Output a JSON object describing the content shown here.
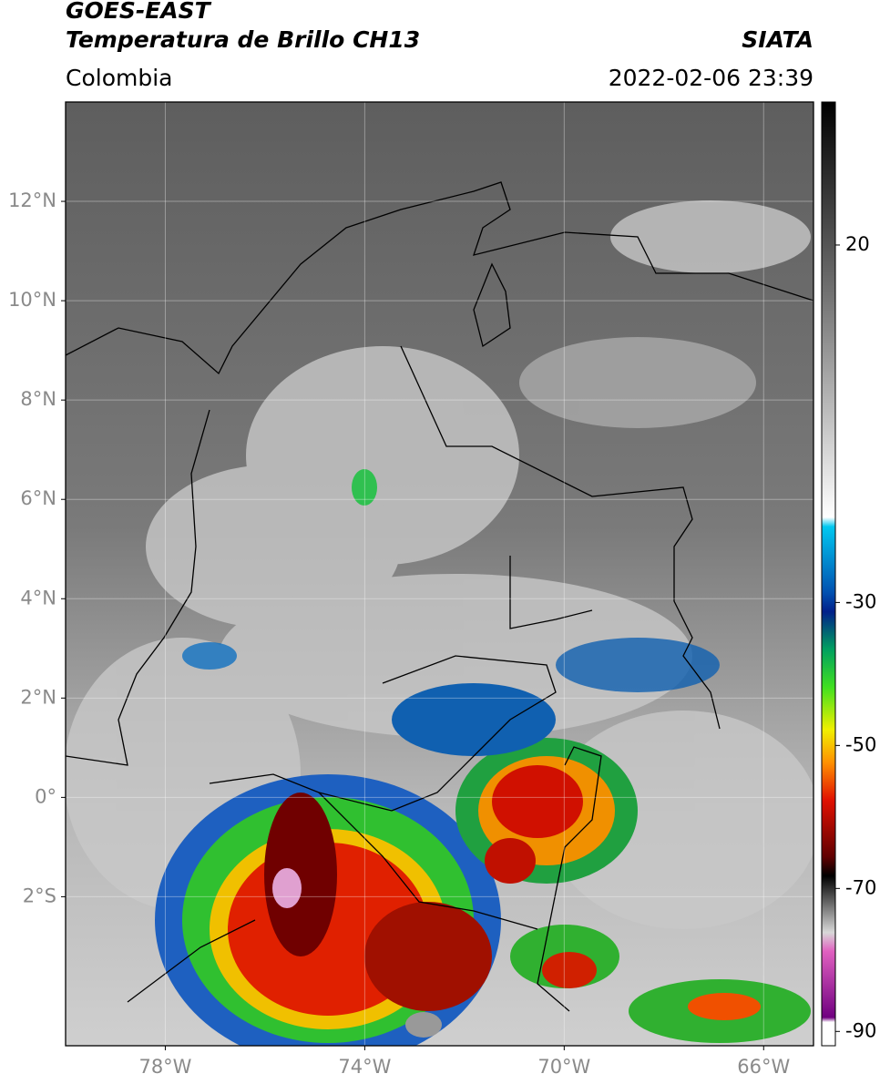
{
  "header": {
    "title": "GOES-EAST",
    "subtitle": "Temperatura de Brillo CH13",
    "source": "SIATA",
    "region": "Colombia",
    "datetime": "2022-02-06 23:39"
  },
  "map": {
    "xlim": [
      -80,
      -65
    ],
    "ylim": [
      -5,
      14
    ],
    "xticks": [
      {
        "value": -78,
        "label": "78°W"
      },
      {
        "value": -74,
        "label": "74°W"
      },
      {
        "value": -70,
        "label": "70°W"
      },
      {
        "value": -66,
        "label": "66°W"
      }
    ],
    "yticks": [
      {
        "value": 12,
        "label": "12°N"
      },
      {
        "value": 10,
        "label": "10°N"
      },
      {
        "value": 8,
        "label": "8°N"
      },
      {
        "value": 6,
        "label": "6°N"
      },
      {
        "value": 4,
        "label": "4°N"
      },
      {
        "value": 2,
        "label": "2°N"
      },
      {
        "value": 0,
        "label": "0°"
      },
      {
        "value": -2,
        "label": "2°S"
      }
    ]
  },
  "colorbar": {
    "lim": [
      -92,
      40
    ],
    "ticks": [
      20,
      -30,
      -50,
      -70,
      -90
    ]
  }
}
